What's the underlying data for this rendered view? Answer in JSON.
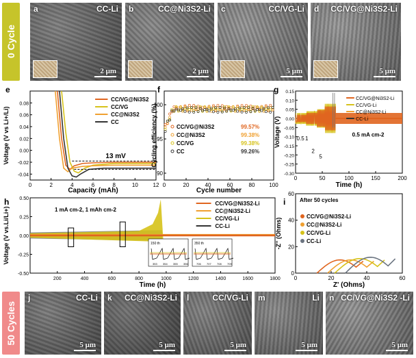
{
  "top_row": {
    "band_label": "0 Cycle",
    "band_color": "#c6c42a",
    "images": [
      {
        "letter": "a",
        "title": "CC-Li",
        "scale": "2 μm",
        "tone": "#6d6d6d"
      },
      {
        "letter": "b",
        "title": "CC@Ni3S2-Li",
        "scale": "2 μm",
        "tone": "#7a7a7a"
      },
      {
        "letter": "c",
        "title": "CC/VG-Li",
        "scale": "5 μm",
        "tone": "#8a8a8a"
      },
      {
        "letter": "d",
        "title": "CC/VG@Ni3S2-Li",
        "scale": "5 μm",
        "tone": "#8c8c8c"
      }
    ]
  },
  "bottom_row": {
    "band_label": "50 Cycles",
    "band_color": "#f08a8a",
    "images": [
      {
        "letter": "j",
        "title": "CC-Li",
        "scale": "5 μm",
        "tone": "#6a6a6a"
      },
      {
        "letter": "k",
        "title": "CC@Ni3S2-Li",
        "scale": "5 μm",
        "tone": "#5e5e5e"
      },
      {
        "letter": "l",
        "title": "CC/VG-Li",
        "scale": "5 μm",
        "tone": "#727272"
      },
      {
        "letter": "m",
        "title": "Li",
        "scale": "5 μm",
        "tone": "#7c7c7c"
      },
      {
        "letter": "n",
        "title": "CC/VG@Ni3S2 -Li",
        "scale": "5 μm",
        "tone": "#8a8a8a"
      }
    ]
  },
  "colors": {
    "vgni": "#e0651f",
    "vg": "#d6c21a",
    "ccni": "#f0a030",
    "cc": "#333333",
    "gray": "#6b7480"
  },
  "chart_data": [
    {
      "panel": "e",
      "type": "line",
      "xlabel": "Capacity (mAh)",
      "ylabel": "Voltage (V vs Li+/Li)",
      "xlim": [
        0,
        12
      ],
      "ylim": [
        -0.05,
        0.1
      ],
      "xticks": [
        "0",
        "2",
        "4",
        "6",
        "8",
        "10",
        "12"
      ],
      "yticks": [
        "-0.04",
        "-0.02",
        "0.00",
        "0.02",
        "0.04",
        "0.06",
        "0.08"
      ],
      "annotation": "13 mV",
      "legend": [
        "CC/VG@Ni3S2",
        "CC/VG",
        "CC@Ni3S2",
        "CC"
      ],
      "series": [
        {
          "name": "CC/VG@Ni3S2",
          "x": [
            2.6,
            3.0,
            3.4,
            3.8,
            4.2,
            5,
            6,
            8,
            10,
            12
          ],
          "y": [
            0.1,
            0.02,
            -0.025,
            -0.032,
            -0.026,
            -0.022,
            -0.021,
            -0.02,
            -0.02,
            -0.02
          ]
        },
        {
          "name": "CC/VG",
          "x": [
            3.0,
            3.4,
            3.8,
            4.2,
            4.6,
            5.2,
            6,
            8,
            10,
            12
          ],
          "y": [
            0.1,
            0.03,
            -0.02,
            -0.035,
            -0.038,
            -0.03,
            -0.025,
            -0.022,
            -0.022,
            -0.022
          ]
        },
        {
          "name": "CC@Ni3S2",
          "x": [
            2.4,
            2.8,
            3.2,
            3.6,
            4.0,
            5,
            6,
            8,
            10,
            12
          ],
          "y": [
            0.1,
            0.02,
            -0.03,
            -0.036,
            -0.03,
            -0.027,
            -0.026,
            -0.025,
            -0.025,
            -0.025
          ]
        },
        {
          "name": "CC",
          "x": [
            2.8,
            3.2,
            3.6,
            4.0,
            4.4,
            4.8,
            5.6,
            7,
            9,
            12
          ],
          "y": [
            0.1,
            0.02,
            -0.03,
            -0.043,
            -0.045,
            -0.04,
            -0.032,
            -0.03,
            -0.03,
            -0.03
          ]
        }
      ]
    },
    {
      "panel": "f",
      "type": "scatter",
      "xlabel": "Cycle number",
      "ylabel": "Cycling efficiency (%)",
      "xlim": [
        0,
        100
      ],
      "ylim": [
        89,
        102
      ],
      "xticks": [
        "0",
        "20",
        "40",
        "60",
        "80",
        "100"
      ],
      "yticks": [
        "90",
        "95",
        "100"
      ],
      "legend": [
        {
          "name": "CC/VG@Ni3S2",
          "value": "99.57%"
        },
        {
          "name": "CC@Ni3S2",
          "value": "99.38%"
        },
        {
          "name": "CC/VG",
          "value": "99.38%"
        },
        {
          "name": "CC",
          "value": "99.26%"
        }
      ],
      "series": [
        {
          "name": "CC/VG@Ni3S2",
          "y": 99.57
        },
        {
          "name": "CC@Ni3S2",
          "y": 99.38
        },
        {
          "name": "CC/VG",
          "y": 99.38
        },
        {
          "name": "CC",
          "y": 99.26
        }
      ]
    },
    {
      "panel": "g",
      "type": "line",
      "xlabel": "Time (h)",
      "ylabel": "Voltage (V)",
      "xlim": [
        0,
        200
      ],
      "ylim": [
        -0.3,
        0.15
      ],
      "xticks": [
        "0",
        "50",
        "100",
        "150",
        "200"
      ],
      "yticks": [
        "-0.30",
        "-0.25",
        "-0.20",
        "-0.15",
        "-0.10",
        "-0.05",
        "0.00",
        "0.05",
        "0.10",
        "0.15"
      ],
      "annotations": [
        "0.5",
        "1",
        "2",
        "5",
        "0.5 mA cm-2"
      ],
      "legend": [
        "CC/VG@Ni3S2-Li",
        "CC/VG-Li",
        "CC@Ni3S2-Li",
        "CC-Li"
      ]
    },
    {
      "panel": "h",
      "type": "line",
      "xlabel": "Time (h)",
      "ylabel": "Voltage (V vs.Li/Li+)",
      "xlim": [
        0,
        1800
      ],
      "ylim": [
        -0.5,
        0.5
      ],
      "xticks": [
        "200",
        "400",
        "600",
        "800",
        "1000",
        "1200",
        "1400",
        "1600",
        "1800"
      ],
      "yticks": [
        "-0.50",
        "-0.25",
        "0.00",
        "0.25",
        "0.50"
      ],
      "annotation": "1 mA cm-2, 1 mAh cm-2",
      "legend": [
        "CC/VG@Ni3S2-Li",
        "CC@Ni3S2-Li",
        "CC/VG-Li",
        "CC-Li"
      ],
      "insets": [
        {
          "label": "150 th",
          "xticks": [
            "353",
            "354",
            "355",
            "356"
          ]
        },
        {
          "label": "350 th",
          "xticks": [
            "706",
            "707",
            "708",
            "709"
          ]
        }
      ]
    },
    {
      "panel": "i",
      "type": "line",
      "title": "After 50 cycles",
      "xlabel": "Z' (Ohms)",
      "ylabel": "-Z'' (Ohms)",
      "xlim": [
        0,
        60
      ],
      "ylim": [
        0,
        60
      ],
      "xticks": [
        "0",
        "20",
        "40",
        "60"
      ],
      "yticks": [
        "0",
        "20",
        "40",
        "60"
      ],
      "legend": [
        "CC/VG@Ni3S2-Li",
        "CC@Ni3S2-Li",
        "CC/VG-Li",
        "CC-Li"
      ],
      "arcs": [
        {
          "name": "CC/VG@Ni3S2-Li",
          "start": 12,
          "end": 34,
          "height": 10
        },
        {
          "name": "CC@Ni3S2-Li",
          "start": 18,
          "end": 40,
          "height": 10
        },
        {
          "name": "CC/VG-Li",
          "start": 22,
          "end": 46,
          "height": 11
        },
        {
          "name": "CC-Li",
          "start": 28,
          "end": 52,
          "height": 12
        }
      ]
    }
  ]
}
